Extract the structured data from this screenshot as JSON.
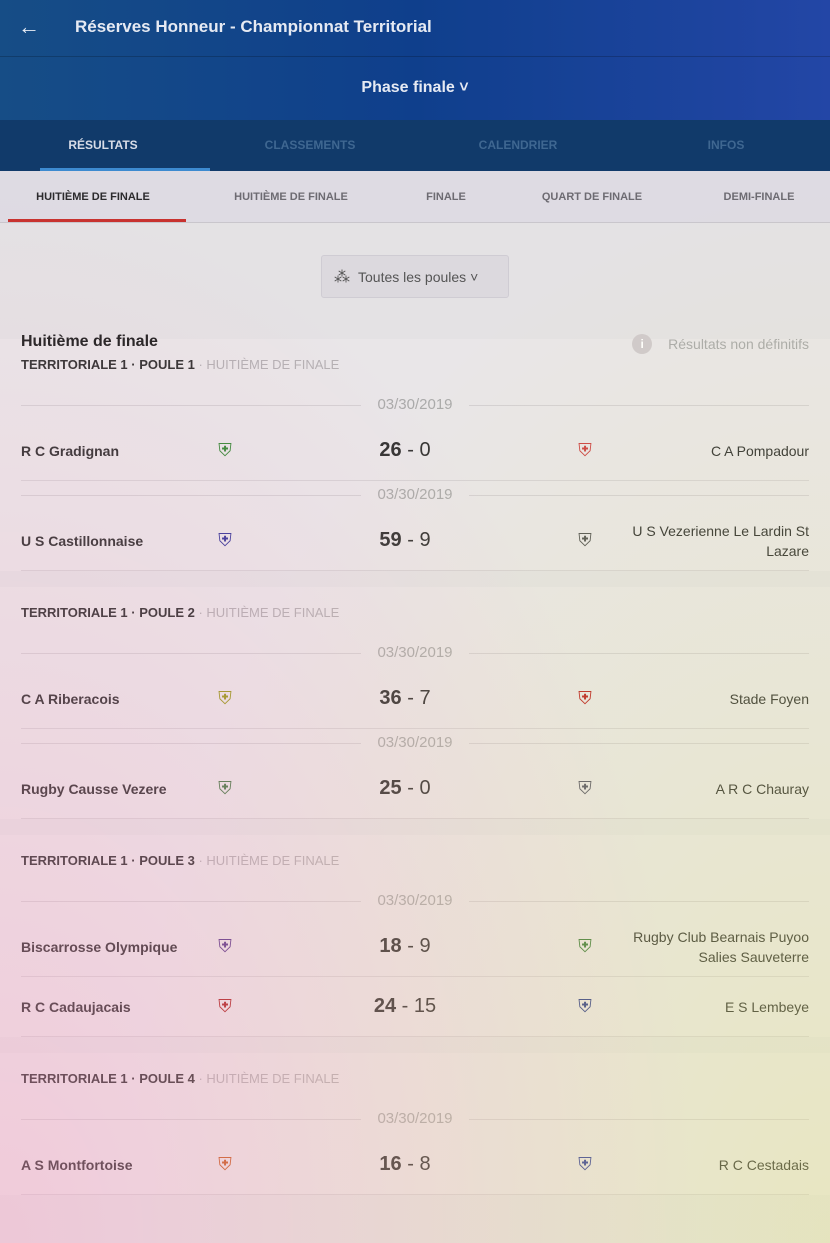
{
  "header": {
    "title": "Réserves Honneur - Championnat Territorial",
    "phase": "Phase finale ˅"
  },
  "tabs": [
    "RÉSULTATS",
    "CLASSEMENTS",
    "CALENDRIER",
    "INFOS"
  ],
  "subtabs": [
    "HUITIÈME DE FINALE",
    "HUITIÈME DE FINALE",
    "FINALE",
    "QUART DE FINALE",
    "DEMI-FINALE"
  ],
  "filter": {
    "label": "Toutes les poules ˅"
  },
  "heading": "Huitième de finale",
  "note": "Résultats non définitifs",
  "sections": [
    {
      "title": "TERRITORIALE 1 · POULE 1",
      "sub": " · HUITIÈME DE FINALE",
      "matches": [
        {
          "date": "03/30/2019",
          "home": "R C Gradignan",
          "hs": "26",
          "as": "0",
          "away": "C A Pompadour",
          "hl": "#3a8a3a",
          "al": "#c44"
        },
        {
          "date": "03/30/2019",
          "home": "U S Castillonnaise",
          "hs": "59",
          "as": "9",
          "away": "U S Vezerienne Le Lardin St Lazare",
          "hl": "#3a3a9a",
          "al": "#555"
        }
      ]
    },
    {
      "title": "TERRITORIALE 1 · POULE 2",
      "sub": " · HUITIÈME DE FINALE",
      "matches": [
        {
          "date": "03/30/2019",
          "home": "C A Riberacois",
          "hs": "36",
          "as": "7",
          "away": "Stade Foyen",
          "hl": "#9a9a20",
          "al": "#b22"
        },
        {
          "date": "03/30/2019",
          "home": "Rugby Causse Vezere",
          "hs": "25",
          "as": "0",
          "away": "A R C Chauray",
          "hl": "#4a7a4a",
          "al": "#556"
        }
      ]
    },
    {
      "title": "TERRITORIALE 1 · POULE 3",
      "sub": " · HUITIÈME DE FINALE",
      "matches": [
        {
          "date": "03/30/2019",
          "home": "Biscarrosse Olympique",
          "hs": "18",
          "as": "9",
          "away": "Rugby Club Bearnais Puyoo Salies Sauveterre",
          "hl": "#5a3a8a",
          "al": "#3a7a3a"
        },
        {
          "date": "",
          "home": "R C Cadaujacais",
          "hs": "24",
          "as": "15",
          "away": "E S Lembeye",
          "hl": "#a22",
          "al": "#2a3a8a"
        }
      ]
    },
    {
      "title": "TERRITORIALE 1 · POULE 4",
      "sub": " · HUITIÈME DE FINALE",
      "matches": [
        {
          "date": "03/30/2019",
          "home": "A S Montfortoise",
          "hs": "16",
          "as": "8",
          "away": "R C Cestadais",
          "hl": "#c45a20",
          "al": "#2a3a9a"
        }
      ]
    }
  ]
}
